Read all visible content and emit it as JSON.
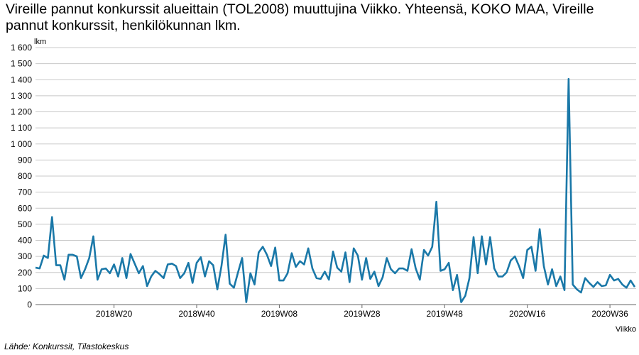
{
  "title": "Vireille pannut konkurssit alueittain (TOL2008) muuttujina Viikko. Yhteensä, KOKO MAA, Vireille pannut konkurssit, henkilökunnan lkm.",
  "source": "Lähde: Konkurssit, Tilastokeskus",
  "chart_data": {
    "type": "line",
    "title": "Vireille pannut konkurssit alueittain (TOL2008) muuttujina Viikko. Yhteensä, KOKO MAA, Vireille pannut konkurssit, henkilökunnan lkm.",
    "xlabel": "Viikko",
    "ylabel": "lkm",
    "ylim": [
      0,
      1600
    ],
    "yticks": [
      0,
      100,
      200,
      300,
      400,
      500,
      600,
      700,
      800,
      900,
      1000,
      1100,
      1200,
      1300,
      1400,
      1500,
      1600
    ],
    "ytick_labels": [
      "0",
      "100",
      "200",
      "300",
      "400",
      "500",
      "600",
      "700",
      "800",
      "900",
      "1 000",
      "1 100",
      "1 200",
      "1 300",
      "1 400",
      "1 500",
      "1 600"
    ],
    "x_start_week": "2018W01",
    "x_tick_labels": [
      {
        "label": "2018W20",
        "index": 19
      },
      {
        "label": "2018W40",
        "index": 39
      },
      {
        "label": "2019W08",
        "index": 59
      },
      {
        "label": "2019W28",
        "index": 79
      },
      {
        "label": "2019W48",
        "index": 99
      },
      {
        "label": "2020W16",
        "index": 119
      },
      {
        "label": "2020W36",
        "index": 139
      }
    ],
    "grid": true,
    "color": "#1a78a8",
    "series": [
      {
        "name": "Yhteensä, KOKO MAA",
        "values": [
          230,
          225,
          305,
          290,
          545,
          245,
          245,
          155,
          310,
          310,
          300,
          165,
          220,
          290,
          425,
          155,
          220,
          225,
          195,
          250,
          175,
          290,
          165,
          315,
          255,
          195,
          240,
          115,
          175,
          210,
          190,
          165,
          250,
          255,
          240,
          165,
          195,
          260,
          135,
          260,
          295,
          175,
          270,
          245,
          95,
          240,
          435,
          130,
          105,
          200,
          290,
          15,
          195,
          125,
          325,
          360,
          310,
          240,
          355,
          150,
          150,
          195,
          320,
          235,
          270,
          250,
          350,
          225,
          165,
          160,
          205,
          155,
          330,
          230,
          205,
          325,
          140,
          350,
          305,
          155,
          290,
          160,
          205,
          115,
          170,
          290,
          220,
          195,
          225,
          225,
          210,
          345,
          225,
          155,
          340,
          305,
          360,
          640,
          210,
          220,
          260,
          90,
          185,
          15,
          55,
          165,
          420,
          195,
          425,
          250,
          420,
          225,
          175,
          175,
          200,
          275,
          300,
          240,
          165,
          340,
          360,
          210,
          470,
          240,
          125,
          220,
          115,
          175,
          90,
          1405,
          125,
          95,
          75,
          165,
          135,
          110,
          140,
          115,
          120,
          185,
          150,
          160,
          125,
          105,
          150,
          110
        ]
      }
    ]
  }
}
